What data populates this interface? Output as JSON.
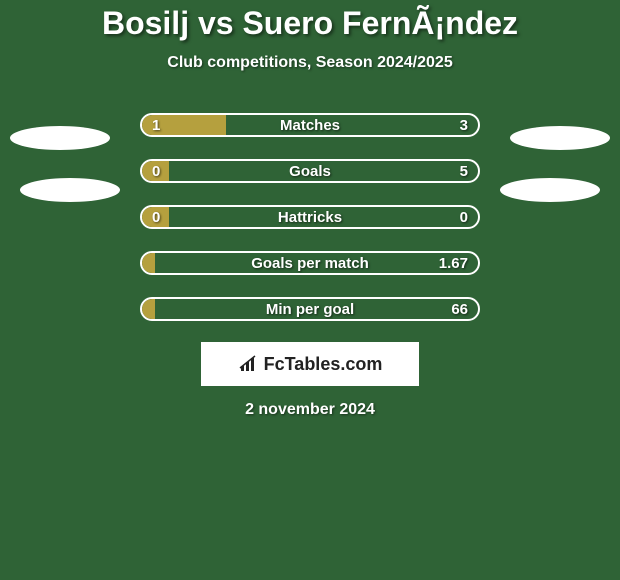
{
  "title": "Bosilj vs Suero FernÃ¡ndez",
  "subtitle": "Club competitions, Season 2024/2025",
  "date": "2 november 2024",
  "logo_text": "FcTables.com",
  "background_color": "#2f6336",
  "left_fill_color": "#b5a03e",
  "border_color": "#ffffff",
  "text_color": "#ffffff",
  "rows": [
    {
      "label": "Matches",
      "left_val": "1",
      "right_val": "3",
      "left_pct": 25
    },
    {
      "label": "Goals",
      "left_val": "0",
      "right_val": "5",
      "left_pct": 8
    },
    {
      "label": "Hattricks",
      "left_val": "0",
      "right_val": "0",
      "left_pct": 8
    },
    {
      "label": "Goals per match",
      "left_val": "",
      "right_val": "1.67",
      "left_pct": 4
    },
    {
      "label": "Min per goal",
      "left_val": "",
      "right_val": "66",
      "left_pct": 4
    }
  ],
  "ellipses": {
    "color": "#ffffff"
  }
}
